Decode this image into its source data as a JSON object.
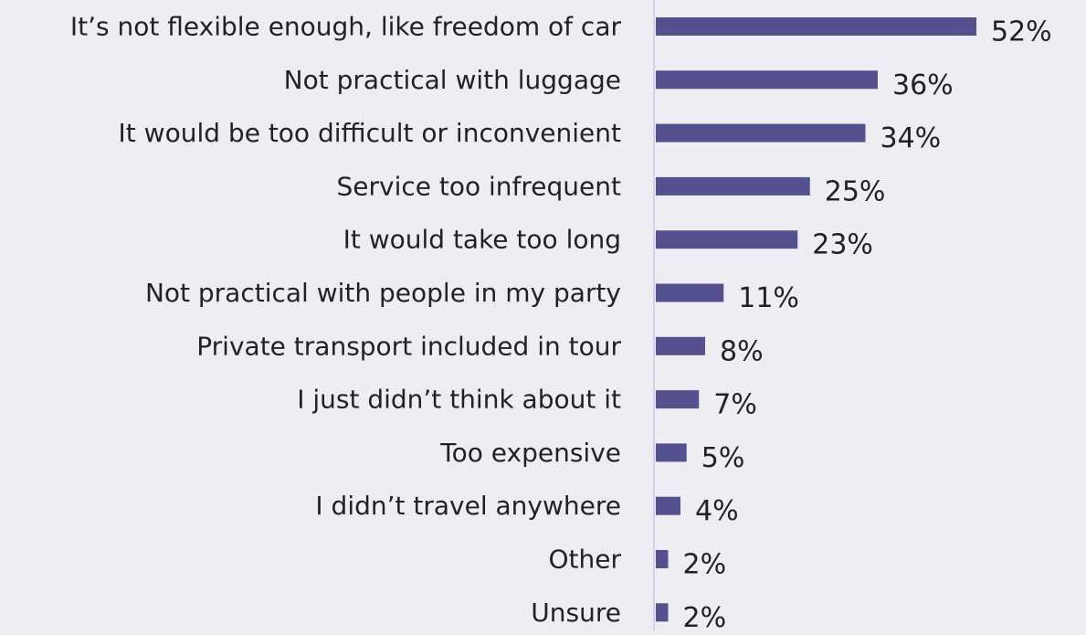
{
  "chart_data": {
    "type": "bar",
    "orientation": "horizontal",
    "categories": [
      "It’s not flexible enough, like freedom of car",
      "Not practical with luggage",
      "It would be too difficult or inconvenient",
      "Service too infrequent",
      "It would take too long",
      "Not practical with people in my party",
      "Private transport included in tour",
      "I just didn’t think about it",
      "Too expensive",
      "I didn’t travel anywhere",
      "Other",
      "Unsure"
    ],
    "values": [
      52,
      36,
      34,
      25,
      23,
      11,
      8,
      7,
      5,
      4,
      2,
      2
    ],
    "data_labels": [
      "52%",
      "36%",
      "34%",
      "25%",
      "23%",
      "11%",
      "8%",
      "7%",
      "5%",
      "4%",
      "2%",
      "2%"
    ],
    "unit": "%",
    "title": "",
    "xlabel": "",
    "ylabel": "",
    "grid": false,
    "legend": "none"
  },
  "colors": {
    "background": "#efedf4",
    "bar": "#55518f",
    "axis": "#d2c4e8",
    "text": "#222222"
  }
}
